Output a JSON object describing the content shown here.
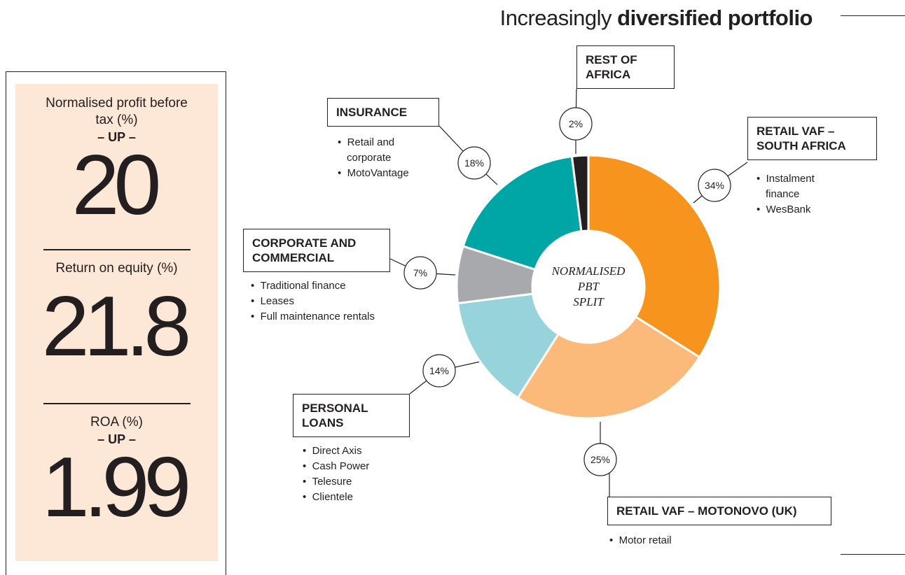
{
  "chart_data": {
    "type": "donut",
    "title_lead": "Increasingly",
    "title_emphasis": "diversified portfolio",
    "center_label": [
      "NORMALISED",
      "PBT",
      "SPLIT"
    ],
    "categories": [
      "RETAIL VAF – SOUTH AFRICA",
      "RETAIL VAF – MOTONOVO (UK)",
      "PERSONAL LOANS",
      "CORPORATE AND COMMERCIAL",
      "INSURANCE",
      "REST OF AFRICA"
    ],
    "values": [
      34,
      25,
      14,
      7,
      18,
      2
    ],
    "value_labels": [
      "34%",
      "25%",
      "14%",
      "7%",
      "18%",
      "2%"
    ],
    "colors": [
      "#f7941d",
      "#fbb97a",
      "#96d3da",
      "#a7a9ac",
      "#00a6a6",
      "#231f20"
    ],
    "bullets": [
      [
        "Instalment finance",
        "WesBank"
      ],
      [
        "Motor retail"
      ],
      [
        "Direct Axis",
        "Cash Power",
        "Telesure",
        "Clientele"
      ],
      [
        "Traditional finance",
        "Leases",
        "Full maintenance rentals"
      ],
      [
        "Retail and corporate",
        "MotoVantage"
      ],
      []
    ]
  },
  "stats": [
    {
      "label": "Normalised profit before tax (%)",
      "qualifier": "– UP –",
      "value": 20
    },
    {
      "label": "Return on equity (%)",
      "value": 21.8
    },
    {
      "label": "ROA (%)",
      "qualifier": "– UP –",
      "value": 1.99
    }
  ]
}
